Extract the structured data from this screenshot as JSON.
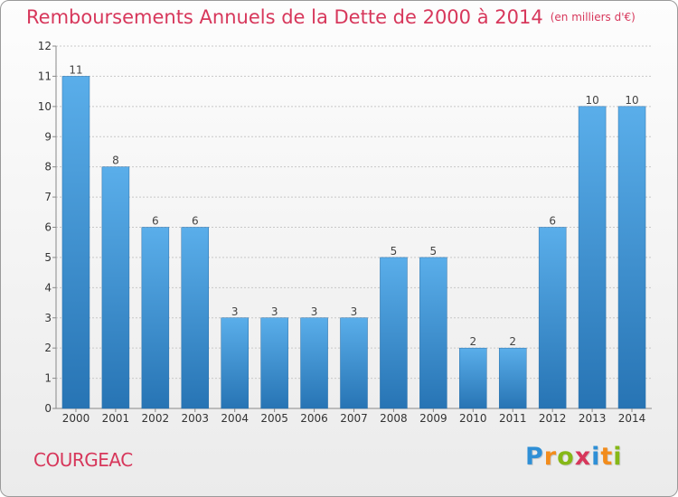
{
  "title": "Remboursements Annuels de la Dette de 2000 à 2014",
  "subtitle": "(en milliers d'€)",
  "place": "COURGEAC",
  "logo": {
    "text": "Proxiti",
    "letters": [
      {
        "ch": "P",
        "color": "#2e8fd6"
      },
      {
        "ch": "r",
        "color": "#f28c1c"
      },
      {
        "ch": "o",
        "color": "#86b817"
      },
      {
        "ch": "x",
        "color": "#d7375b"
      },
      {
        "ch": "i",
        "color": "#2e8fd6"
      },
      {
        "ch": "t",
        "color": "#f28c1c"
      },
      {
        "ch": "i",
        "color": "#86b817"
      }
    ]
  },
  "colors": {
    "bar_light": "#5aaeea",
    "bar_dark": "#2774b4",
    "title": "#d7375b",
    "grid": "#c8c8c8"
  },
  "chart_data": {
    "type": "bar",
    "title": "Remboursements Annuels de la Dette de 2000 à 2014",
    "subtitle": "(en milliers d'€)",
    "categories": [
      "2000",
      "2001",
      "2002",
      "2003",
      "2004",
      "2005",
      "2006",
      "2007",
      "2008",
      "2009",
      "2010",
      "2011",
      "2012",
      "2013",
      "2014"
    ],
    "values": [
      11,
      8,
      6,
      6,
      3,
      3,
      3,
      3,
      5,
      5,
      2,
      2,
      6,
      10,
      10
    ],
    "data_labels": [
      "11",
      "8",
      "6",
      "6",
      "3",
      "3",
      "3",
      "3",
      "5",
      "5",
      "2",
      "2",
      "6",
      "10",
      "10"
    ],
    "y_ticks": [
      "0",
      "1",
      "2",
      "3",
      "4",
      "5",
      "6",
      "7",
      "8",
      "9",
      "10",
      "11",
      "12"
    ],
    "ylim": [
      0,
      12
    ],
    "grid": true,
    "xlabel": "",
    "ylabel": ""
  }
}
